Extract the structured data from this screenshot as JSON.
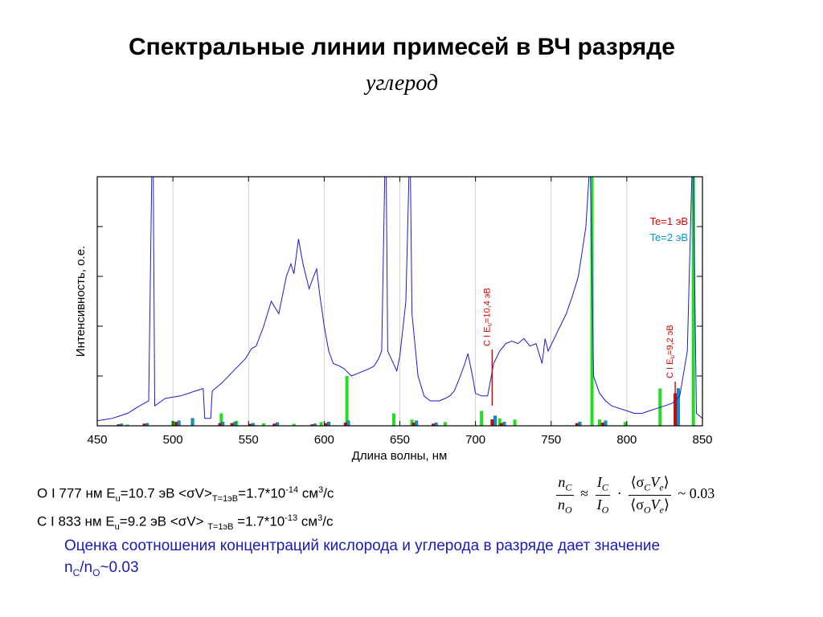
{
  "header": {
    "title": "Спектральные линии примесей в ВЧ разряде",
    "subtitle": "углерод"
  },
  "chart_data": {
    "type": "line",
    "xlabel": "Длина волны, нм",
    "ylabel": "Интенсивность, о.е.",
    "xlim": [
      450,
      850
    ],
    "ylim": [
      0,
      100
    ],
    "x_ticks": [
      "450",
      "500",
      "550",
      "600",
      "650",
      "700",
      "750",
      "800",
      "850"
    ],
    "grid": true,
    "legend": {
      "placement": "top-right",
      "entries": [
        {
          "label": "Te=1 эВ",
          "color": "#dd0000"
        },
        {
          "label": "Te=2 эВ",
          "color": "#0096dc"
        }
      ]
    },
    "series": [
      {
        "type": "line",
        "color": "#1a1ad0",
        "points": [
          [
            450,
            2
          ],
          [
            460,
            3
          ],
          [
            470,
            5
          ],
          [
            478,
            8
          ],
          [
            484,
            10
          ],
          [
            486,
            100
          ],
          [
            487,
            100
          ],
          [
            488,
            8
          ],
          [
            495,
            11
          ],
          [
            505,
            12
          ],
          [
            515,
            14
          ],
          [
            520,
            15
          ],
          [
            521,
            3
          ],
          [
            525,
            3
          ],
          [
            526,
            14
          ],
          [
            532,
            17
          ],
          [
            540,
            22
          ],
          [
            548,
            27
          ],
          [
            552,
            31
          ],
          [
            555,
            32
          ],
          [
            560,
            40
          ],
          [
            565,
            50
          ],
          [
            570,
            45
          ],
          [
            575,
            60
          ],
          [
            578,
            65
          ],
          [
            580,
            61
          ],
          [
            583,
            75
          ],
          [
            586,
            65
          ],
          [
            590,
            55
          ],
          [
            593,
            60
          ],
          [
            595,
            63
          ],
          [
            597,
            53
          ],
          [
            600,
            40
          ],
          [
            603,
            30
          ],
          [
            606,
            25
          ],
          [
            610,
            24
          ],
          [
            613,
            23
          ],
          [
            618,
            20
          ],
          [
            622,
            21
          ],
          [
            626,
            22
          ],
          [
            630,
            23
          ],
          [
            633,
            24
          ],
          [
            636,
            27
          ],
          [
            638,
            30
          ],
          [
            640,
            100
          ],
          [
            641,
            100
          ],
          [
            642,
            30
          ],
          [
            645,
            26
          ],
          [
            648,
            22
          ],
          [
            650,
            28
          ],
          [
            654,
            50
          ],
          [
            656,
            100
          ],
          [
            657,
            100
          ],
          [
            658,
            45
          ],
          [
            662,
            20
          ],
          [
            666,
            12
          ],
          [
            670,
            10
          ],
          [
            676,
            10
          ],
          [
            680,
            11
          ],
          [
            683,
            12
          ],
          [
            686,
            14
          ],
          [
            690,
            20
          ],
          [
            693,
            25
          ],
          [
            695,
            29
          ],
          [
            698,
            20
          ],
          [
            700,
            13
          ],
          [
            704,
            12
          ],
          [
            708,
            12
          ],
          [
            712,
            25
          ],
          [
            716,
            30
          ],
          [
            720,
            33
          ],
          [
            724,
            34
          ],
          [
            728,
            33
          ],
          [
            732,
            35
          ],
          [
            736,
            32
          ],
          [
            740,
            33
          ],
          [
            744,
            25
          ],
          [
            746,
            35
          ],
          [
            748,
            30
          ],
          [
            752,
            35
          ],
          [
            756,
            40
          ],
          [
            760,
            45
          ],
          [
            764,
            52
          ],
          [
            768,
            60
          ],
          [
            771,
            72
          ],
          [
            773,
            80
          ],
          [
            775,
            100
          ],
          [
            776,
            100
          ],
          [
            778,
            20
          ],
          [
            782,
            13
          ],
          [
            786,
            10
          ],
          [
            790,
            8
          ],
          [
            795,
            7
          ],
          [
            800,
            6
          ],
          [
            805,
            5
          ],
          [
            810,
            5
          ],
          [
            815,
            6
          ],
          [
            820,
            7
          ],
          [
            825,
            8
          ],
          [
            830,
            9
          ],
          [
            835,
            12
          ],
          [
            840,
            30
          ],
          [
            843,
            100
          ],
          [
            844,
            100
          ],
          [
            846,
            5
          ],
          [
            850,
            3
          ]
        ]
      },
      {
        "type": "bars",
        "name": "Te=1 эВ",
        "color": "#dd0000",
        "points": [
          [
            464,
            0.5
          ],
          [
            481,
            0.8
          ],
          [
            502,
            1.5
          ],
          [
            531,
            1.0
          ],
          [
            539,
            1.0
          ],
          [
            551,
            0.7
          ],
          [
            567,
            0.8
          ],
          [
            592,
            0.5
          ],
          [
            601,
            1.0
          ],
          [
            614,
            1.2
          ],
          [
            659,
            1.2
          ],
          [
            672,
            0.8
          ],
          [
            711,
            2.5
          ],
          [
            717,
            1.0
          ],
          [
            767,
            1.0
          ],
          [
            784,
            1.2
          ],
          [
            832,
            13
          ]
        ]
      },
      {
        "type": "bars",
        "name": "Te=2 эВ",
        "color": "#0096dc",
        "points": [
          [
            466,
            0.8
          ],
          [
            483,
            1.0
          ],
          [
            504,
            2.0
          ],
          [
            513,
            3.0
          ],
          [
            533,
            1.5
          ],
          [
            541,
            1.5
          ],
          [
            553,
            1.0
          ],
          [
            569,
            1.3
          ],
          [
            594,
            0.8
          ],
          [
            603,
            1.5
          ],
          [
            616,
            2.0
          ],
          [
            661,
            2.0
          ],
          [
            674,
            1.2
          ],
          [
            713,
            4.0
          ],
          [
            719,
            1.5
          ],
          [
            769,
            1.5
          ],
          [
            786,
            2.0
          ],
          [
            834,
            15
          ]
        ]
      },
      {
        "type": "bars",
        "name": "green",
        "color": "#22dd22",
        "points": [
          [
            470,
            0.5
          ],
          [
            500,
            2.0
          ],
          [
            532,
            5.0
          ],
          [
            542,
            2.0
          ],
          [
            560,
            1.0
          ],
          [
            580,
            0.8
          ],
          [
            598,
            1.5
          ],
          [
            615,
            20
          ],
          [
            646,
            5.0
          ],
          [
            658,
            2.5
          ],
          [
            680,
            1.5
          ],
          [
            704,
            6.0
          ],
          [
            716,
            3.0
          ],
          [
            726,
            2.5
          ],
          [
            777,
            100
          ],
          [
            782,
            2.5
          ],
          [
            799,
            1.5
          ],
          [
            822,
            15
          ],
          [
            844,
            100
          ]
        ]
      }
    ],
    "annotations": [
      {
        "text": "C I E",
        "sub": "u",
        "tail": "=10,4 эВ",
        "x": 711,
        "color": "#dd0000"
      },
      {
        "text": "C I E",
        "sub": "u",
        "tail": "=9,2 эВ",
        "x": 832,
        "color": "#dd0000"
      }
    ]
  },
  "info": {
    "line1": {
      "a": "O I 777 нм E",
      "a_sub": "u",
      "b": "=10.7 эВ <σV>",
      "b_sub": "T=1эВ",
      "c": "=1.7*10",
      "c_sup": "-14",
      "d": " см",
      "d_sup": "3",
      "e": "/с"
    },
    "line2": {
      "a": "C I 833 нм  E",
      "a_sub": "u",
      "b": "=9.2 эВ   <σV> ",
      "b_sub": "T=1эВ",
      "c": " =1.7*10",
      "c_sup": "-13",
      "d": " см",
      "d_sup": "3",
      "e": "/с"
    }
  },
  "formula": {
    "lhs_num": "n",
    "lhs_num_sub": "C",
    "lhs_den": "n",
    "lhs_den_sub": "O",
    "approx": "≈",
    "mid_num": "I",
    "mid_num_sub": "C",
    "mid_den": "I",
    "mid_den_sub": "O",
    "dot": "·",
    "rhs_num_a": "⟨σ",
    "rhs_num_sub1": "C",
    "rhs_num_b": "V",
    "rhs_num_sub2": "e",
    "rhs_num_c": "⟩",
    "rhs_den_a": "⟨σ",
    "rhs_den_sub1": "O",
    "rhs_den_b": "V",
    "rhs_den_sub2": "e",
    "rhs_den_c": "⟩",
    "result": "~ 0.03"
  },
  "note": {
    "text1": "Оценка соотношения концентраций кислорода и углерода в разряде дает значение n",
    "sub1": "C",
    "text2": "/n",
    "sub2": "O",
    "text3": "~0.03"
  }
}
